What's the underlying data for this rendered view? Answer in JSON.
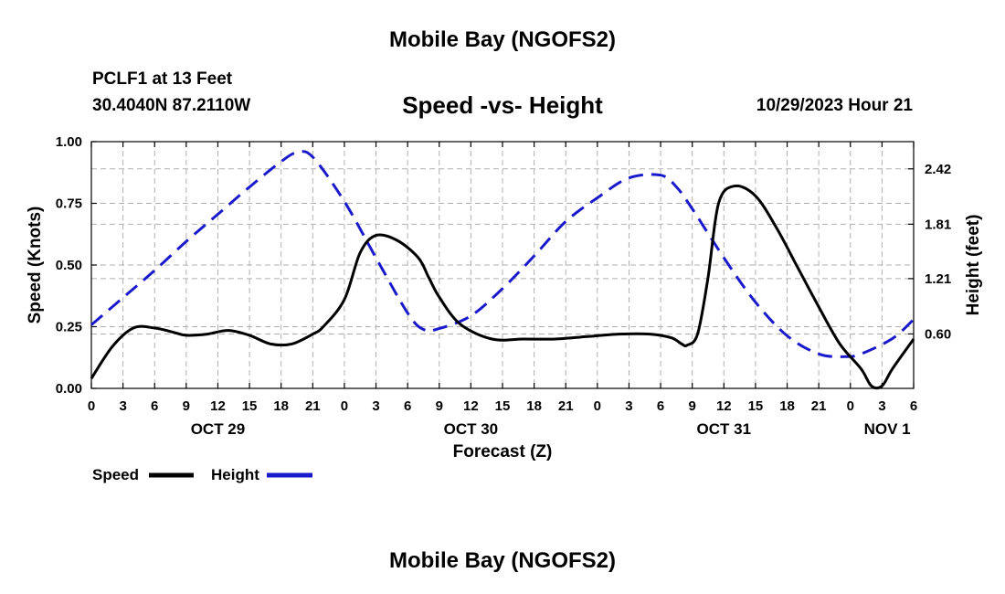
{
  "header": {
    "title": "Mobile Bay (NGOFS2)",
    "station": "PCLF1 at 13 Feet",
    "coords": "30.4040N  87.2110W",
    "subtitle": "Speed -vs- Height",
    "datetime": "10/29/2023 Hour 21"
  },
  "footer": {
    "title": "Mobile Bay (NGOFS2)"
  },
  "chart_data": {
    "type": "line",
    "xlabel": "Forecast (Z)",
    "ylabel": "Speed (Knots)",
    "y2label": "Height (feet)",
    "xlim": [
      0,
      78
    ],
    "ylim": [
      0,
      1
    ],
    "y2lim": [
      0,
      2.72
    ],
    "x_ticks": [
      0,
      3,
      6,
      9,
      12,
      15,
      18,
      21,
      24,
      27,
      30,
      33,
      36,
      39,
      42,
      45,
      48,
      51,
      54,
      57,
      60,
      63,
      66,
      69,
      72,
      75,
      78
    ],
    "x_tick_labels": [
      "0",
      "3",
      "6",
      "9",
      "12",
      "15",
      "18",
      "21",
      "0",
      "3",
      "6",
      "9",
      "12",
      "15",
      "18",
      "21",
      "0",
      "3",
      "6",
      "9",
      "12",
      "15",
      "18",
      "21",
      "0",
      "3",
      "6"
    ],
    "y_ticks": [
      0,
      0.25,
      0.5,
      0.75,
      1.0
    ],
    "y_tick_labels": [
      "0.00",
      "0.25",
      "0.50",
      "0.75",
      "1.00"
    ],
    "y2_ticks": [
      0.6,
      1.21,
      1.81,
      2.42
    ],
    "y2_tick_labels": [
      "0.60",
      "1.21",
      "1.81",
      "2.42"
    ],
    "day_labels": [
      {
        "label": "OCT 29",
        "hour": 12
      },
      {
        "label": "OCT 30",
        "hour": 36
      },
      {
        "label": "OCT 31",
        "hour": 60
      },
      {
        "label": "NOV 1",
        "hour": 75.5
      }
    ],
    "grid": true,
    "legend": {
      "position": "bottom-left",
      "entries": [
        "Speed",
        "Height"
      ]
    },
    "series": [
      {
        "name": "Speed",
        "axis": "left",
        "color": "#000000",
        "dash": "solid",
        "x": [
          0,
          2,
          4,
          6,
          8,
          9,
          11,
          13,
          15,
          17,
          19,
          21,
          22,
          24,
          25.5,
          27,
          29,
          31,
          32,
          33,
          35,
          38,
          41,
          44,
          47,
          50,
          53,
          55,
          56,
          56.5,
          57.5,
          58.5,
          59.5,
          61,
          63,
          65,
          67,
          69,
          71,
          73,
          74,
          75,
          76,
          78
        ],
        "values": [
          0.04,
          0.17,
          0.245,
          0.245,
          0.225,
          0.215,
          0.22,
          0.235,
          0.215,
          0.18,
          0.18,
          0.22,
          0.25,
          0.36,
          0.55,
          0.62,
          0.6,
          0.53,
          0.45,
          0.37,
          0.26,
          0.2,
          0.2,
          0.2,
          0.21,
          0.22,
          0.22,
          0.205,
          0.18,
          0.175,
          0.22,
          0.45,
          0.75,
          0.82,
          0.78,
          0.65,
          0.49,
          0.33,
          0.18,
          0.08,
          0.01,
          0.01,
          0.08,
          0.2
        ]
      },
      {
        "name": "Height",
        "axis": "right",
        "color": "#1a1acc",
        "dash": "dashed",
        "x": [
          0,
          3,
          6,
          9,
          12,
          15,
          18,
          19.5,
          21,
          24,
          27,
          30,
          31.5,
          33,
          36,
          39,
          42,
          45,
          48,
          51,
          54,
          55.5,
          57,
          60,
          63,
          66,
          69,
          71.5,
          73,
          76,
          78
        ],
        "values": [
          0.7,
          1.0,
          1.3,
          1.62,
          1.92,
          2.22,
          2.5,
          2.6,
          2.55,
          2.06,
          1.44,
          0.83,
          0.65,
          0.66,
          0.8,
          1.1,
          1.46,
          1.84,
          2.1,
          2.32,
          2.35,
          2.22,
          1.98,
          1.44,
          0.95,
          0.58,
          0.38,
          0.35,
          0.38,
          0.55,
          0.76
        ]
      }
    ]
  }
}
